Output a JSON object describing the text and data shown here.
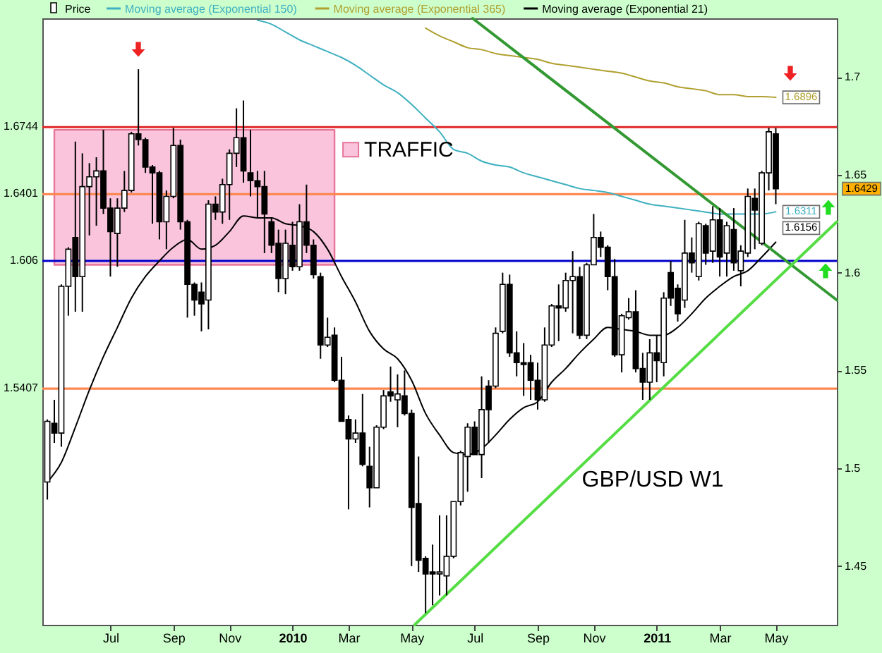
{
  "chart_data": {
    "type": "candlestick",
    "x": [
      "2009-05-04",
      "2009-05-11",
      "2009-05-18",
      "2009-05-25",
      "2009-06-01",
      "2009-06-08",
      "2009-06-15",
      "2009-06-22",
      "2009-06-29",
      "2009-07-06",
      "2009-07-13",
      "2009-07-20",
      "2009-07-27",
      "2009-08-03",
      "2009-08-10",
      "2009-08-17",
      "2009-08-24",
      "2009-08-31",
      "2009-09-07",
      "2009-09-14",
      "2009-09-21",
      "2009-09-28",
      "2009-10-05",
      "2009-10-12",
      "2009-10-19",
      "2009-10-26",
      "2009-11-02",
      "2009-11-09",
      "2009-11-16",
      "2009-11-23",
      "2009-11-30",
      "2009-12-07",
      "2009-12-14",
      "2009-12-21",
      "2009-12-28",
      "2010-01-04",
      "2010-01-11",
      "2010-01-18",
      "2010-01-25",
      "2010-02-01",
      "2010-02-08",
      "2010-02-15",
      "2010-02-22",
      "2010-03-01",
      "2010-03-08",
      "2010-03-15",
      "2010-03-22",
      "2010-03-29",
      "2010-04-05",
      "2010-04-12",
      "2010-04-19",
      "2010-04-26",
      "2010-05-03",
      "2010-05-10",
      "2010-05-17",
      "2010-05-24",
      "2010-05-31",
      "2010-06-07",
      "2010-06-14",
      "2010-06-21",
      "2010-06-28",
      "2010-07-05",
      "2010-07-12",
      "2010-07-19",
      "2010-07-26",
      "2010-08-02",
      "2010-08-09",
      "2010-08-16",
      "2010-08-23",
      "2010-08-30",
      "2010-09-06",
      "2010-09-13",
      "2010-09-20",
      "2010-09-27",
      "2010-10-04",
      "2010-10-11",
      "2010-10-18",
      "2010-10-25",
      "2010-11-01",
      "2010-11-08",
      "2010-11-15",
      "2010-11-22",
      "2010-11-29",
      "2010-12-06",
      "2010-12-13",
      "2010-12-20",
      "2010-12-27",
      "2011-01-03",
      "2011-01-10",
      "2011-01-17",
      "2011-01-24",
      "2011-01-31",
      "2011-02-07",
      "2011-02-14",
      "2011-02-21",
      "2011-02-28",
      "2011-03-07",
      "2011-03-14",
      "2011-03-21",
      "2011-03-28",
      "2011-04-04",
      "2011-04-11",
      "2011-04-18",
      "2011-04-25",
      "2011-05-02"
    ],
    "series": [
      {
        "name": "Price",
        "color": "#000000",
        "ohlc": [
          [
            1.493,
            1.525,
            1.484,
            1.524
          ],
          [
            1.523,
            1.535,
            1.513,
            1.518
          ],
          [
            1.518,
            1.594,
            1.511,
            1.593
          ],
          [
            1.593,
            1.613,
            1.578,
            1.612
          ],
          [
            1.618,
            1.667,
            1.58,
            1.598
          ],
          [
            1.598,
            1.661,
            1.58,
            1.644
          ],
          [
            1.644,
            1.656,
            1.619,
            1.649
          ],
          [
            1.649,
            1.659,
            1.624,
            1.652
          ],
          [
            1.652,
            1.673,
            1.63,
            1.633
          ],
          [
            1.633,
            1.638,
            1.598,
            1.621
          ],
          [
            1.62,
            1.638,
            1.603,
            1.633
          ],
          [
            1.633,
            1.652,
            1.631,
            1.642
          ],
          [
            1.642,
            1.672,
            1.641,
            1.671
          ],
          [
            1.671,
            1.704,
            1.665,
            1.668
          ],
          [
            1.668,
            1.669,
            1.651,
            1.654
          ],
          [
            1.654,
            1.655,
            1.625,
            1.651
          ],
          [
            1.651,
            1.652,
            1.617,
            1.626
          ],
          [
            1.626,
            1.642,
            1.612,
            1.639
          ],
          [
            1.639,
            1.674,
            1.638,
            1.665
          ],
          [
            1.665,
            1.668,
            1.622,
            1.626
          ],
          [
            1.626,
            1.627,
            1.577,
            1.594
          ],
          [
            1.594,
            1.595,
            1.578,
            1.586
          ],
          [
            1.59,
            1.595,
            1.57,
            1.584
          ],
          [
            1.586,
            1.637,
            1.571,
            1.635
          ],
          [
            1.635,
            1.639,
            1.627,
            1.631
          ],
          [
            1.631,
            1.648,
            1.625,
            1.645
          ],
          [
            1.645,
            1.663,
            1.627,
            1.661
          ],
          [
            1.661,
            1.684,
            1.654,
            1.669
          ],
          [
            1.669,
            1.688,
            1.646,
            1.652
          ],
          [
            1.651,
            1.673,
            1.639,
            1.647
          ],
          [
            1.647,
            1.652,
            1.628,
            1.644
          ],
          [
            1.644,
            1.652,
            1.61,
            1.63
          ],
          [
            1.626,
            1.628,
            1.61,
            1.614
          ],
          [
            1.615,
            1.622,
            1.59,
            1.597
          ],
          [
            1.597,
            1.622,
            1.589,
            1.615
          ],
          [
            1.614,
            1.626,
            1.601,
            1.603
          ],
          [
            1.603,
            1.635,
            1.601,
            1.626
          ],
          [
            1.626,
            1.645,
            1.61,
            1.614
          ],
          [
            1.614,
            1.617,
            1.597,
            1.599
          ],
          [
            1.598,
            1.6,
            1.556,
            1.563
          ],
          [
            1.563,
            1.577,
            1.562,
            1.567
          ],
          [
            1.568,
            1.572,
            1.544,
            1.545
          ],
          [
            1.545,
            1.557,
            1.524,
            1.524
          ],
          [
            1.525,
            1.527,
            1.479,
            1.515
          ],
          [
            1.515,
            1.525,
            1.513,
            1.518
          ],
          [
            1.518,
            1.538,
            1.501,
            1.502
          ],
          [
            1.501,
            1.511,
            1.48,
            1.49
          ],
          [
            1.49,
            1.522,
            1.49,
            1.521
          ],
          [
            1.521,
            1.54,
            1.52,
            1.537
          ],
          [
            1.539,
            1.552,
            1.534,
            1.537
          ],
          [
            1.535,
            1.548,
            1.521,
            1.538
          ],
          [
            1.537,
            1.55,
            1.527,
            1.528
          ],
          [
            1.528,
            1.53,
            1.45,
            1.48
          ],
          [
            1.482,
            1.506,
            1.447,
            1.453
          ],
          [
            1.454,
            1.455,
            1.426,
            1.446
          ],
          [
            1.447,
            1.461,
            1.43,
            1.446
          ],
          [
            1.446,
            1.476,
            1.435,
            1.447
          ],
          [
            1.445,
            1.476,
            1.435,
            1.455
          ],
          [
            1.455,
            1.483,
            1.454,
            1.483
          ],
          [
            1.483,
            1.509,
            1.481,
            1.508
          ],
          [
            1.506,
            1.523,
            1.488,
            1.521
          ],
          [
            1.521,
            1.524,
            1.507,
            1.507
          ],
          [
            1.507,
            1.547,
            1.495,
            1.53
          ],
          [
            1.542,
            1.545,
            1.513,
            1.53
          ],
          [
            1.542,
            1.572,
            1.541,
            1.569
          ],
          [
            1.57,
            1.6,
            1.569,
            1.594
          ],
          [
            1.594,
            1.599,
            1.557,
            1.559
          ],
          [
            1.559,
            1.57,
            1.547,
            1.554
          ],
          [
            1.554,
            1.564,
            1.537,
            1.553
          ],
          [
            1.554,
            1.558,
            1.535,
            1.545
          ],
          [
            1.545,
            1.554,
            1.53,
            1.535
          ],
          [
            1.535,
            1.572,
            1.534,
            1.563
          ],
          [
            1.563,
            1.584,
            1.562,
            1.583
          ],
          [
            1.583,
            1.594,
            1.565,
            1.582
          ],
          [
            1.582,
            1.6,
            1.58,
            1.596
          ],
          [
            1.596,
            1.611,
            1.569,
            1.598
          ],
          [
            1.598,
            1.603,
            1.566,
            1.568
          ],
          [
            1.568,
            1.605,
            1.566,
            1.604
          ],
          [
            1.604,
            1.63,
            1.604,
            1.618
          ],
          [
            1.618,
            1.621,
            1.608,
            1.613
          ],
          [
            1.613,
            1.614,
            1.591,
            1.598
          ],
          [
            1.598,
            1.607,
            1.557,
            1.558
          ],
          [
            1.558,
            1.579,
            1.549,
            1.578
          ],
          [
            1.577,
            1.587,
            1.576,
            1.58
          ],
          [
            1.58,
            1.591,
            1.549,
            1.551
          ],
          [
            1.551,
            1.559,
            1.535,
            1.544
          ],
          [
            1.544,
            1.566,
            1.535,
            1.559
          ],
          [
            1.559,
            1.568,
            1.544,
            1.555
          ],
          [
            1.554,
            1.59,
            1.547,
            1.587
          ],
          [
            1.6,
            1.606,
            1.583,
            1.587
          ],
          [
            1.592,
            1.594,
            1.575,
            1.579
          ],
          [
            1.586,
            1.627,
            1.582,
            1.61
          ],
          [
            1.61,
            1.618,
            1.6,
            1.605
          ],
          [
            1.598,
            1.626,
            1.596,
            1.625
          ],
          [
            1.624,
            1.625,
            1.604,
            1.61
          ],
          [
            1.611,
            1.634,
            1.605,
            1.627
          ],
          [
            1.627,
            1.633,
            1.598,
            1.608
          ],
          [
            1.61,
            1.626,
            1.598,
            1.624
          ],
          [
            1.622,
            1.633,
            1.601,
            1.605
          ],
          [
            1.601,
            1.614,
            1.593,
            1.611
          ],
          [
            1.61,
            1.643,
            1.608,
            1.639
          ],
          [
            1.638,
            1.643,
            1.612,
            1.632
          ],
          [
            1.615,
            1.652,
            1.614,
            1.651
          ],
          [
            1.651,
            1.674,
            1.642,
            1.672
          ],
          [
            1.671,
            1.674,
            1.635,
            1.6429
          ]
        ],
        "value_labels": [
          null,
          null,
          null,
          null,
          null,
          null,
          null,
          null,
          null,
          null,
          null,
          null,
          null,
          null,
          null,
          null,
          null,
          null,
          null,
          null,
          null,
          null,
          null,
          null,
          null,
          null,
          null,
          null,
          null,
          null,
          null,
          null,
          null,
          null,
          null,
          null,
          null,
          null,
          null,
          null,
          null,
          null,
          null,
          null,
          null,
          null,
          null,
          null,
          null,
          null,
          null,
          null,
          null,
          null,
          null,
          null,
          null,
          null,
          null,
          null,
          null,
          null,
          null,
          null,
          null,
          null,
          null,
          null,
          null,
          null,
          null,
          null,
          null,
          null,
          null,
          null,
          null,
          null,
          null,
          null,
          null,
          null,
          null,
          null,
          null,
          null,
          null,
          null,
          null,
          null,
          null,
          null,
          null,
          null,
          null,
          null,
          null,
          null,
          null,
          null,
          null,
          null,
          null,
          null,
          "1.6429"
        ]
      },
      {
        "name": "Moving average (Exponential 150)",
        "type": "line",
        "color": "#3fb0c0",
        "x": [
          "2009-11-30",
          "2009-12-14",
          "2009-12-28",
          "2010-01-11",
          "2010-01-25",
          "2010-02-08",
          "2010-02-22",
          "2010-03-08",
          "2010-03-22",
          "2010-04-05",
          "2010-04-19",
          "2010-05-03",
          "2010-05-17",
          "2010-05-31",
          "2010-06-14",
          "2010-06-28",
          "2010-07-12",
          "2010-07-26",
          "2010-08-09",
          "2010-08-23",
          "2010-09-06",
          "2010-09-20",
          "2010-10-04",
          "2010-10-18",
          "2010-11-01",
          "2010-11-15",
          "2010-11-29",
          "2010-12-13",
          "2010-12-27",
          "2011-01-10",
          "2011-01-24",
          "2011-02-07",
          "2011-02-21",
          "2011-03-07",
          "2011-03-21",
          "2011-04-04",
          "2011-04-18",
          "2011-05-02"
        ],
        "values": [
          1.729,
          1.727,
          1.723,
          1.719,
          1.716,
          1.713,
          1.71,
          1.706,
          1.701,
          1.696,
          1.692,
          1.686,
          1.679,
          1.672,
          1.663,
          1.661,
          1.657,
          1.655,
          1.654,
          1.651,
          1.649,
          1.647,
          1.645,
          1.643,
          1.642,
          1.641,
          1.639,
          1.637,
          1.635,
          1.634,
          1.633,
          1.632,
          1.631,
          1.63,
          1.63,
          1.63,
          1.63,
          1.6311
        ],
        "value_labels": [
          null,
          null,
          null,
          null,
          null,
          null,
          null,
          null,
          null,
          null,
          null,
          null,
          null,
          null,
          null,
          null,
          null,
          null,
          null,
          null,
          null,
          null,
          null,
          null,
          null,
          null,
          null,
          null,
          null,
          null,
          null,
          null,
          null,
          null,
          null,
          null,
          null,
          "1.6311"
        ]
      },
      {
        "name": "Moving average (Exponential 365)",
        "type": "line",
        "color": "#b0a030",
        "x": [
          "2010-05-17",
          "2010-05-31",
          "2010-06-14",
          "2010-06-28",
          "2010-07-12",
          "2010-07-26",
          "2010-08-09",
          "2010-08-23",
          "2010-09-06",
          "2010-09-20",
          "2010-10-04",
          "2010-10-18",
          "2010-11-01",
          "2010-11-15",
          "2010-11-29",
          "2010-12-13",
          "2010-12-27",
          "2011-01-10",
          "2011-01-24",
          "2011-02-07",
          "2011-02-21",
          "2011-03-07",
          "2011-03-21",
          "2011-04-04",
          "2011-04-18",
          "2011-05-02"
        ],
        "values": [
          1.725,
          1.721,
          1.718,
          1.715,
          1.714,
          1.712,
          1.711,
          1.71,
          1.709,
          1.707,
          1.706,
          1.705,
          1.704,
          1.703,
          1.702,
          1.7,
          1.698,
          1.697,
          1.695,
          1.694,
          1.693,
          1.691,
          1.691,
          1.69,
          1.69,
          1.6896
        ],
        "value_labels": [
          null,
          null,
          null,
          null,
          null,
          null,
          null,
          null,
          null,
          null,
          null,
          null,
          null,
          null,
          null,
          null,
          null,
          null,
          null,
          null,
          null,
          null,
          null,
          null,
          null,
          "1.6896"
        ]
      },
      {
        "name": "Moving average (Exponential 21)",
        "type": "line",
        "color": "#000000",
        "x": [
          "2009-05-04",
          "2009-05-18",
          "2009-06-01",
          "2009-06-15",
          "2009-06-29",
          "2009-07-13",
          "2009-07-27",
          "2009-08-10",
          "2009-08-24",
          "2009-09-07",
          "2009-09-21",
          "2009-10-05",
          "2009-10-19",
          "2009-11-02",
          "2009-11-16",
          "2009-11-30",
          "2009-12-14",
          "2009-12-28",
          "2010-01-11",
          "2010-01-25",
          "2010-02-08",
          "2010-02-22",
          "2010-03-08",
          "2010-03-22",
          "2010-04-05",
          "2010-04-19",
          "2010-05-03",
          "2010-05-17",
          "2010-05-31",
          "2010-06-14",
          "2010-06-28",
          "2010-07-12",
          "2010-07-26",
          "2010-08-09",
          "2010-08-23",
          "2010-09-06",
          "2010-09-20",
          "2010-10-04",
          "2010-10-18",
          "2010-11-01",
          "2010-11-15",
          "2010-11-29",
          "2010-12-13",
          "2010-12-27",
          "2011-01-10",
          "2011-01-24",
          "2011-02-07",
          "2011-02-21",
          "2011-03-07",
          "2011-03-21",
          "2011-04-04",
          "2011-04-18",
          "2011-05-02"
        ],
        "values": [
          1.493,
          1.503,
          1.521,
          1.54,
          1.557,
          1.572,
          1.587,
          1.598,
          1.606,
          1.613,
          1.617,
          1.612,
          1.614,
          1.621,
          1.629,
          1.628,
          1.628,
          1.625,
          1.624,
          1.621,
          1.612,
          1.598,
          1.585,
          1.57,
          1.561,
          1.556,
          1.545,
          1.528,
          1.517,
          1.508,
          1.507,
          1.51,
          1.517,
          1.525,
          1.531,
          1.534,
          1.544,
          1.551,
          1.559,
          1.566,
          1.572,
          1.571,
          1.57,
          1.568,
          1.568,
          1.572,
          1.579,
          1.587,
          1.593,
          1.598,
          1.601,
          1.608,
          1.6156
        ],
        "value_labels": [
          null,
          null,
          null,
          null,
          null,
          null,
          null,
          null,
          null,
          null,
          null,
          null,
          null,
          null,
          null,
          null,
          null,
          null,
          null,
          null,
          null,
          null,
          null,
          null,
          null,
          null,
          null,
          null,
          null,
          null,
          null,
          null,
          null,
          null,
          null,
          null,
          null,
          null,
          null,
          null,
          null,
          null,
          null,
          null,
          null,
          null,
          null,
          null,
          null,
          null,
          null,
          null,
          "1.6156"
        ]
      },
      {
        "name": "TRAFFIC",
        "type": "area",
        "color": "#f9c4dc",
        "x": [
          "2009-05-11",
          "2010-02-15"
        ],
        "values": [
          null,
          null
        ],
        "lower": [
          1.604,
          1.604
        ],
        "upper": [
          1.673,
          1.673
        ]
      },
      {
        "type": "line",
        "color": "#339933",
        "x": [
          "2010-07-03",
          "2011-07-02"
        ],
        "values": [
          1.73,
          1.586
        ]
      },
      {
        "type": "line",
        "color": "#55dd44",
        "x": [
          "2010-05-06",
          "2011-07-02"
        ],
        "values": [
          1.42,
          1.626
        ]
      }
    ],
    "xlim": [
      "2009-04-29",
      "2011-07-02"
    ],
    "xticks": [
      {
        "value": "2009-07-06",
        "label": "Jul"
      },
      {
        "value": "2009-09-07",
        "label": "Sep"
      },
      {
        "value": "2009-11-02",
        "label": "Nov"
      },
      {
        "value": "2010-01-04",
        "label": "2010"
      },
      {
        "value": "2010-03-01",
        "label": "Mar"
      },
      {
        "value": "2010-05-03",
        "label": "May"
      },
      {
        "value": "2010-07-05",
        "label": "Jul"
      },
      {
        "value": "2010-09-06",
        "label": "Sep"
      },
      {
        "value": "2010-11-01",
        "label": "Nov"
      },
      {
        "value": "2011-01-03",
        "label": "2011"
      },
      {
        "value": "2011-03-07",
        "label": "Mar"
      },
      {
        "value": "2011-05-02",
        "label": "May"
      }
    ],
    "ylim": [
      1.42,
      1.73
    ],
    "yticks": [
      1.45,
      1.5,
      1.55,
      1.6,
      1.65,
      1.7
    ],
    "ref_lines": [
      {
        "axis": "y",
        "value": 1.6744,
        "label": "1.6744",
        "color": "#e02828"
      },
      {
        "axis": "y",
        "value": 1.6401,
        "label": "1.6401",
        "color": "#ff8850"
      },
      {
        "axis": "y",
        "value": 1.606,
        "label": "1.606",
        "color": "#0000cc"
      },
      {
        "axis": "y",
        "value": 1.5407,
        "label": "1.5407",
        "color": "#ff8850"
      }
    ],
    "annotations": [
      "GBP/USD W1"
    ],
    "legend": "top left"
  }
}
